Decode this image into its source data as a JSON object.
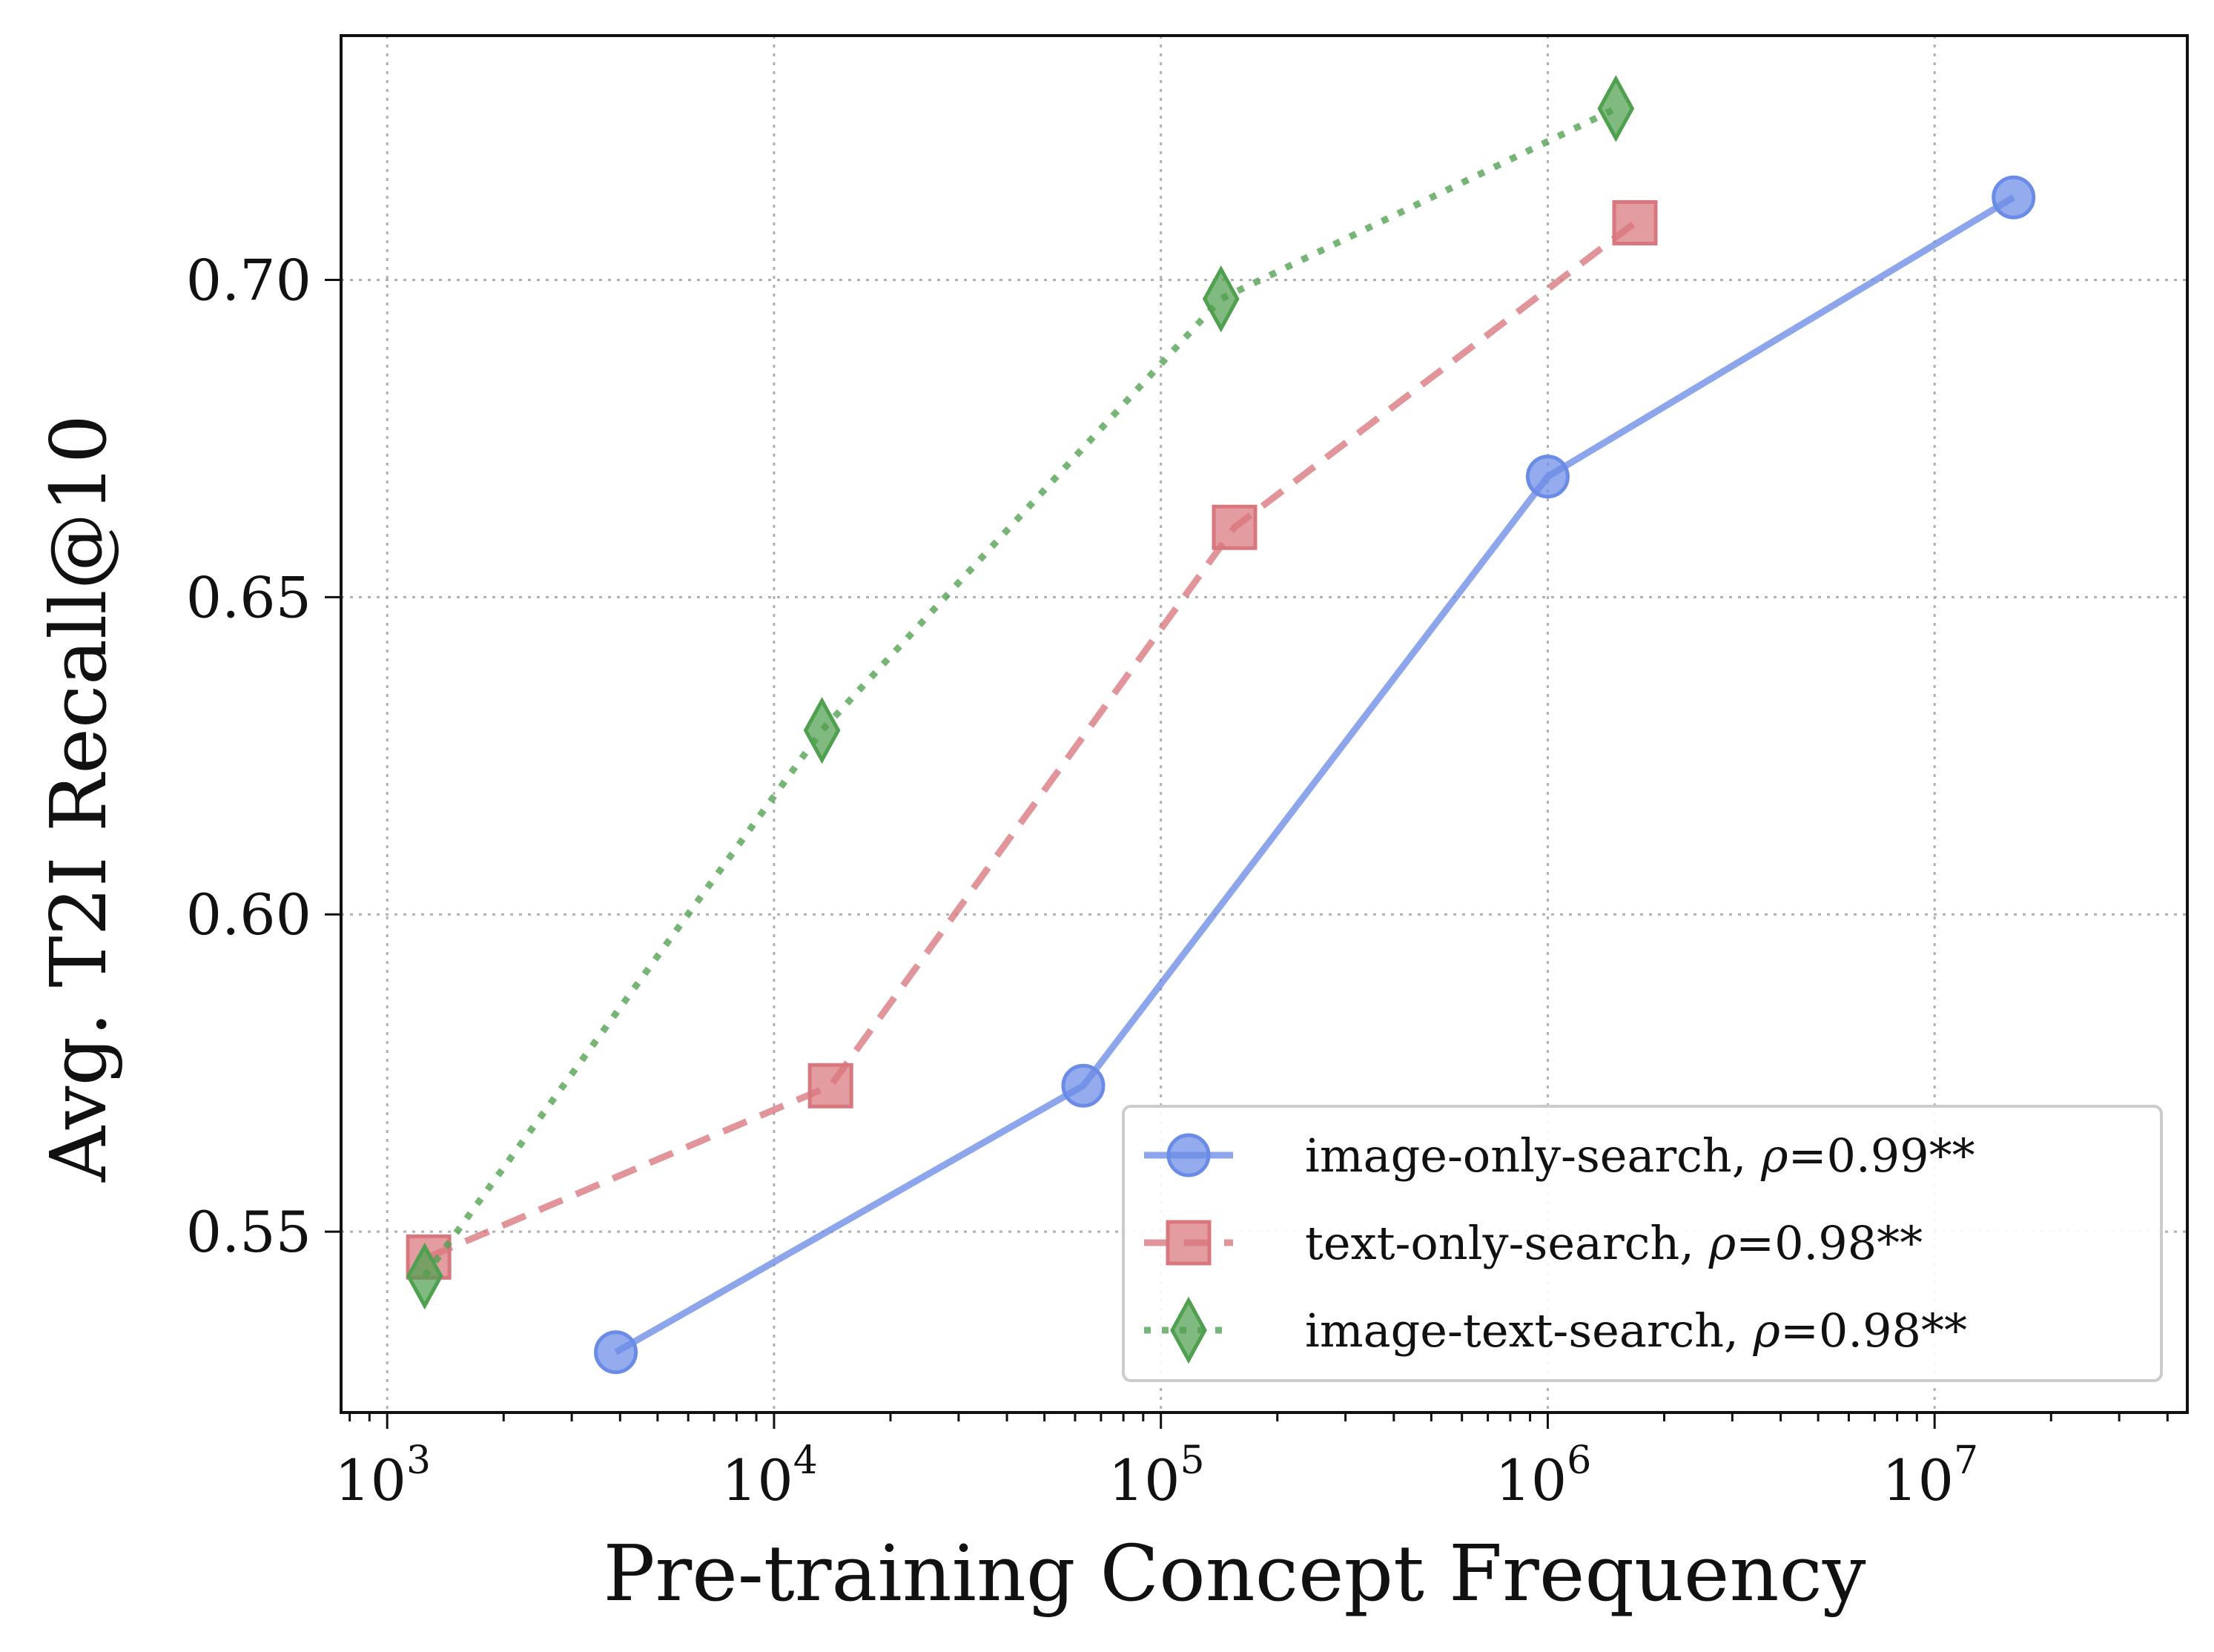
{
  "chart_data": {
    "type": "line",
    "xlabel": "Pre-training Concept Frequency",
    "ylabel": "Avg. T2I Recall@10",
    "x_scale": "log",
    "xlim": [
      760,
      45000000
    ],
    "ylim": [
      0.5215,
      0.7385
    ],
    "x_ticks": [
      {
        "value": 1000,
        "base": "10",
        "exp": "3"
      },
      {
        "value": 10000,
        "base": "10",
        "exp": "4"
      },
      {
        "value": 100000,
        "base": "10",
        "exp": "5"
      },
      {
        "value": 1000000,
        "base": "10",
        "exp": "6"
      },
      {
        "value": 10000000,
        "base": "10",
        "exp": "7"
      }
    ],
    "y_ticks": [
      {
        "value": 0.55,
        "label": "0.55"
      },
      {
        "value": 0.6,
        "label": "0.60"
      },
      {
        "value": 0.65,
        "label": "0.65"
      },
      {
        "value": 0.7,
        "label": "0.70"
      }
    ],
    "grid": true,
    "legend_position": "lower-right",
    "series": [
      {
        "name": "image-only-search, ρ=0.99**",
        "label_main": "image-only-search, ",
        "label_rho": "ρ",
        "label_value": "=0.99**",
        "color": "#6b8ce6",
        "line_style": "solid",
        "marker": "circle",
        "x": [
          3900,
          63000,
          1000000,
          16000000
        ],
        "y": [
          0.531,
          0.573,
          0.669,
          0.713
        ]
      },
      {
        "name": "text-only-search, ρ=0.98**",
        "label_main": "text-only-search, ",
        "label_rho": "ρ",
        "label_value": "=0.98**",
        "color": "#d8777d",
        "line_style": "dashed",
        "marker": "square",
        "x": [
          1280,
          14000,
          155000,
          1680000
        ],
        "y": [
          0.546,
          0.573,
          0.661,
          0.709
        ]
      },
      {
        "name": "image-text-search, ρ=0.98**",
        "label_main": "image-text-search, ",
        "label_rho": "ρ",
        "label_value": "=0.98**",
        "color": "#4fa04f",
        "line_style": "dotted",
        "marker": "diamond",
        "x": [
          1250,
          13300,
          143000,
          1500000
        ],
        "y": [
          0.543,
          0.629,
          0.697,
          0.727
        ]
      }
    ]
  }
}
